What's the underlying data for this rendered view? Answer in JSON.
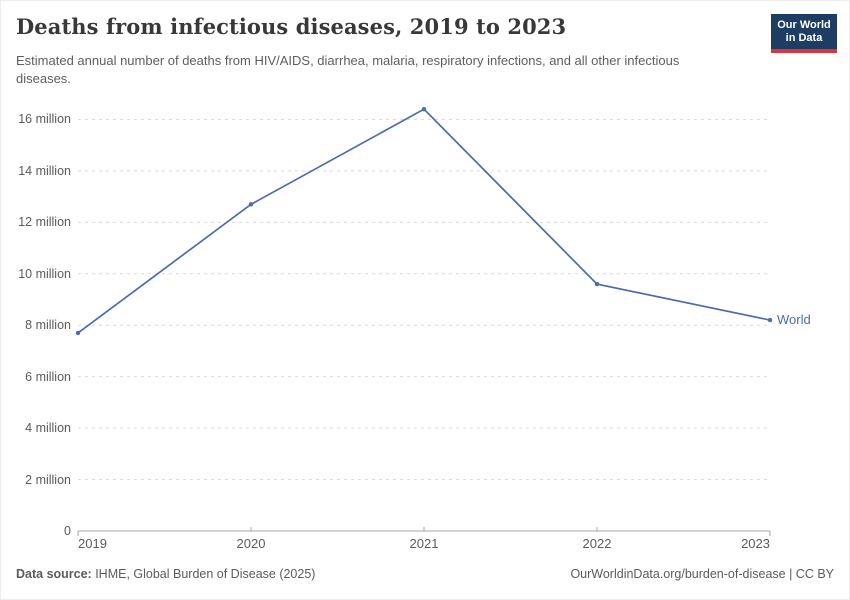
{
  "header": {
    "title": "Deaths from infectious diseases, 2019 to 2023",
    "subtitle": "Estimated annual number of deaths from HIV/AIDS, diarrhea, malaria, respiratory infections, and all other infectious diseases.",
    "logo": {
      "line1": "Our World",
      "line2": "in Data"
    }
  },
  "chart_data": {
    "type": "line",
    "title": "Deaths from infectious diseases, 2019 to 2023",
    "x": [
      2019,
      2020,
      2021,
      2022,
      2023
    ],
    "series": [
      {
        "name": "World",
        "values": [
          7.7,
          12.7,
          16.4,
          9.6,
          8.2
        ]
      }
    ],
    "unit": "million deaths",
    "ylim": [
      0,
      16.4
    ],
    "grid": true,
    "legend_position": "end-of-line",
    "yticks": [
      {
        "v": 0,
        "label": "0"
      },
      {
        "v": 2,
        "label": "2 million"
      },
      {
        "v": 4,
        "label": "4 million"
      },
      {
        "v": 6,
        "label": "6 million"
      },
      {
        "v": 8,
        "label": "8 million"
      },
      {
        "v": 10,
        "label": "10 million"
      },
      {
        "v": 12,
        "label": "12 million"
      },
      {
        "v": 14,
        "label": "14 million"
      },
      {
        "v": 16,
        "label": "16 million"
      }
    ],
    "colors": {
      "line": "#4c6cab",
      "grid": "#d9d9d9",
      "axis": "#a6a6a6",
      "tick_text": "#5b5b5b"
    }
  },
  "footer": {
    "data_source_label": "Data source:",
    "data_source_value": " IHME, Global Burden of Disease (2025)",
    "license": "OurWorldinData.org/burden-of-disease | CC BY"
  }
}
